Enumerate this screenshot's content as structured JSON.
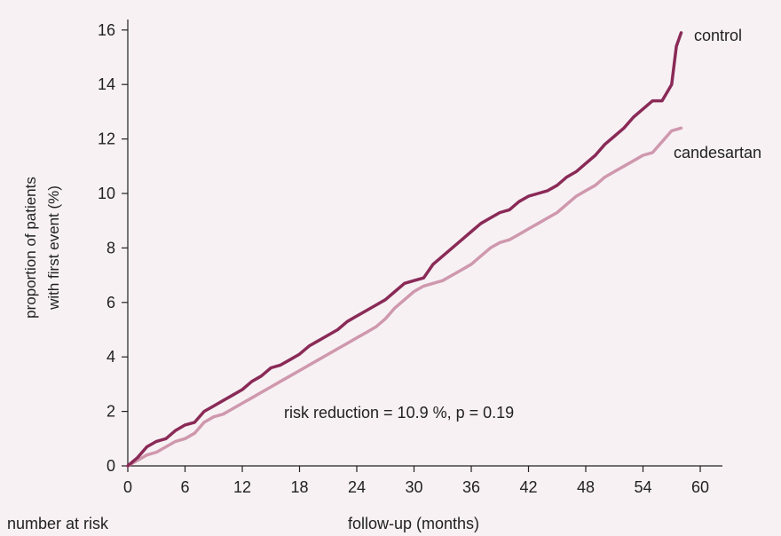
{
  "chart_data": {
    "type": "line",
    "title": "",
    "xlabel": "follow-up (months)",
    "ylabel": [
      "proportion of patients",
      "with first event (%)"
    ],
    "xlim": [
      0,
      62
    ],
    "ylim": [
      0,
      16.5
    ],
    "x_ticks": [
      0,
      6,
      12,
      18,
      24,
      30,
      36,
      42,
      48,
      54,
      60
    ],
    "y_ticks": [
      0,
      2,
      4,
      6,
      8,
      10,
      12,
      14,
      16
    ],
    "grid": false,
    "legend": "direct labels at line ends",
    "annotation": "risk reduction = 10.9 %, p = 0.19",
    "footer_label": "number at risk",
    "series": [
      {
        "name": "control",
        "color": "#8a2a57",
        "x": [
          0,
          1,
          2,
          3,
          4,
          5,
          6,
          7,
          8,
          9,
          10,
          11,
          12,
          13,
          14,
          15,
          16,
          17,
          18,
          19,
          20,
          21,
          22,
          23,
          24,
          25,
          26,
          27,
          28,
          29,
          30,
          31,
          32,
          33,
          34,
          35,
          36,
          37,
          38,
          39,
          40,
          41,
          42,
          43,
          44,
          45,
          46,
          47,
          48,
          49,
          50,
          51,
          52,
          53,
          54,
          55,
          56,
          57,
          57.5,
          58
        ],
        "values": [
          0,
          0.3,
          0.7,
          0.9,
          1.0,
          1.3,
          1.5,
          1.6,
          2.0,
          2.2,
          2.4,
          2.6,
          2.8,
          3.1,
          3.3,
          3.6,
          3.7,
          3.9,
          4.1,
          4.4,
          4.6,
          4.8,
          5.0,
          5.3,
          5.5,
          5.7,
          5.9,
          6.1,
          6.4,
          6.7,
          6.8,
          6.9,
          7.4,
          7.7,
          8.0,
          8.3,
          8.6,
          8.9,
          9.1,
          9.3,
          9.4,
          9.7,
          9.9,
          10.0,
          10.1,
          10.3,
          10.6,
          10.8,
          11.1,
          11.4,
          11.8,
          12.1,
          12.4,
          12.8,
          13.1,
          13.4,
          13.4,
          14.0,
          15.4,
          15.9
        ]
      },
      {
        "name": "candesartan",
        "color": "#cf98ad",
        "x": [
          0,
          1,
          2,
          3,
          4,
          5,
          6,
          7,
          8,
          9,
          10,
          11,
          12,
          13,
          14,
          15,
          16,
          17,
          18,
          19,
          20,
          21,
          22,
          23,
          24,
          25,
          26,
          27,
          28,
          29,
          30,
          31,
          32,
          33,
          34,
          35,
          36,
          37,
          38,
          39,
          40,
          41,
          42,
          43,
          44,
          45,
          46,
          47,
          48,
          49,
          50,
          51,
          52,
          53,
          54,
          55,
          56,
          57,
          58
        ],
        "values": [
          0,
          0.2,
          0.4,
          0.5,
          0.7,
          0.9,
          1.0,
          1.2,
          1.6,
          1.8,
          1.9,
          2.1,
          2.3,
          2.5,
          2.7,
          2.9,
          3.1,
          3.3,
          3.5,
          3.7,
          3.9,
          4.1,
          4.3,
          4.5,
          4.7,
          4.9,
          5.1,
          5.4,
          5.8,
          6.1,
          6.4,
          6.6,
          6.7,
          6.8,
          7.0,
          7.2,
          7.4,
          7.7,
          8.0,
          8.2,
          8.3,
          8.5,
          8.7,
          8.9,
          9.1,
          9.3,
          9.6,
          9.9,
          10.1,
          10.3,
          10.6,
          10.8,
          11.0,
          11.2,
          11.4,
          11.5,
          11.9,
          12.3,
          12.4
        ]
      }
    ]
  }
}
